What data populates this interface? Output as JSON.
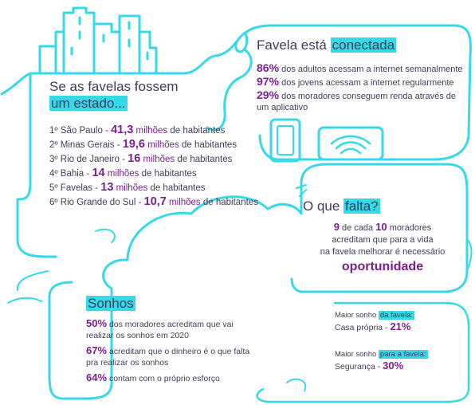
{
  "states": {
    "title_line1": "Se as favelas fossem",
    "title_line2": "um estado...",
    "rows": [
      {
        "rank": "1º São Paulo - ",
        "value": "41,3",
        "unit": " milhões",
        "suffix": " de habitantes"
      },
      {
        "rank": "2º Minas Gerais - ",
        "value": "19,6",
        "unit": " milhões",
        "suffix": " de habitantes"
      },
      {
        "rank": "3º Rio de Janeiro - ",
        "value": "16",
        "unit": " milhões",
        "suffix": " de habitantes"
      },
      {
        "rank": "4º Bahia - ",
        "value": "14",
        "unit": " milhões",
        "suffix": " de habitantes"
      },
      {
        "rank": "5º Favelas - ",
        "value": "13",
        "unit": " milhões",
        "suffix": " de habitantes"
      },
      {
        "rank": "6º Rio Grande do Sul - ",
        "value": "10,7",
        "unit": " milhões",
        "suffix": " de habitantes"
      }
    ]
  },
  "connected": {
    "title_plain": "Favela está ",
    "title_highlight": "conectada",
    "rows": [
      {
        "value": "86%",
        "text": " dos adultos acessam a internet semanalmente"
      },
      {
        "value": "97%",
        "text": " dos jovens acessam a internet regularmente"
      },
      {
        "value": "29%",
        "text": " dos moradores conseguem renda através de um aplicativo"
      }
    ]
  },
  "missing": {
    "title_plain": "O que ",
    "title_highlight": "falta?",
    "num1": "9",
    "text1": " de cada ",
    "num2": "10",
    "text2": " moradores",
    "line2": "acreditam que para a vida",
    "line3": "na favela melhorar é necessário",
    "keyword": "oportunidade"
  },
  "dreams": {
    "title": "Sonhos",
    "rows": [
      {
        "value": "50%",
        "text": " dos moradores acreditam que vai realizar os sonhos em 2020"
      },
      {
        "value": "67%",
        "text": " acreditam que o dinheiro é o que falta pra realizar os sonhos"
      },
      {
        "value": "64%",
        "text": " contam com o próprio esforço"
      }
    ]
  },
  "favela_dream": {
    "label1_plain": "Maior sonho ",
    "label1_highlight": "da favela:",
    "answer1": "Casa própria - ",
    "value1": "21%",
    "label2_plain": "Maior sonho ",
    "label2_highlight": "para a favela:",
    "answer2": "Segurança - ",
    "value2": "30%"
  },
  "colors": {
    "accent": "#36d9e8",
    "purple": "#7a1f8f",
    "text": "#3d3d55"
  },
  "icons": [
    "buildings-icon",
    "phone-icon",
    "wifi-router-icon"
  ]
}
